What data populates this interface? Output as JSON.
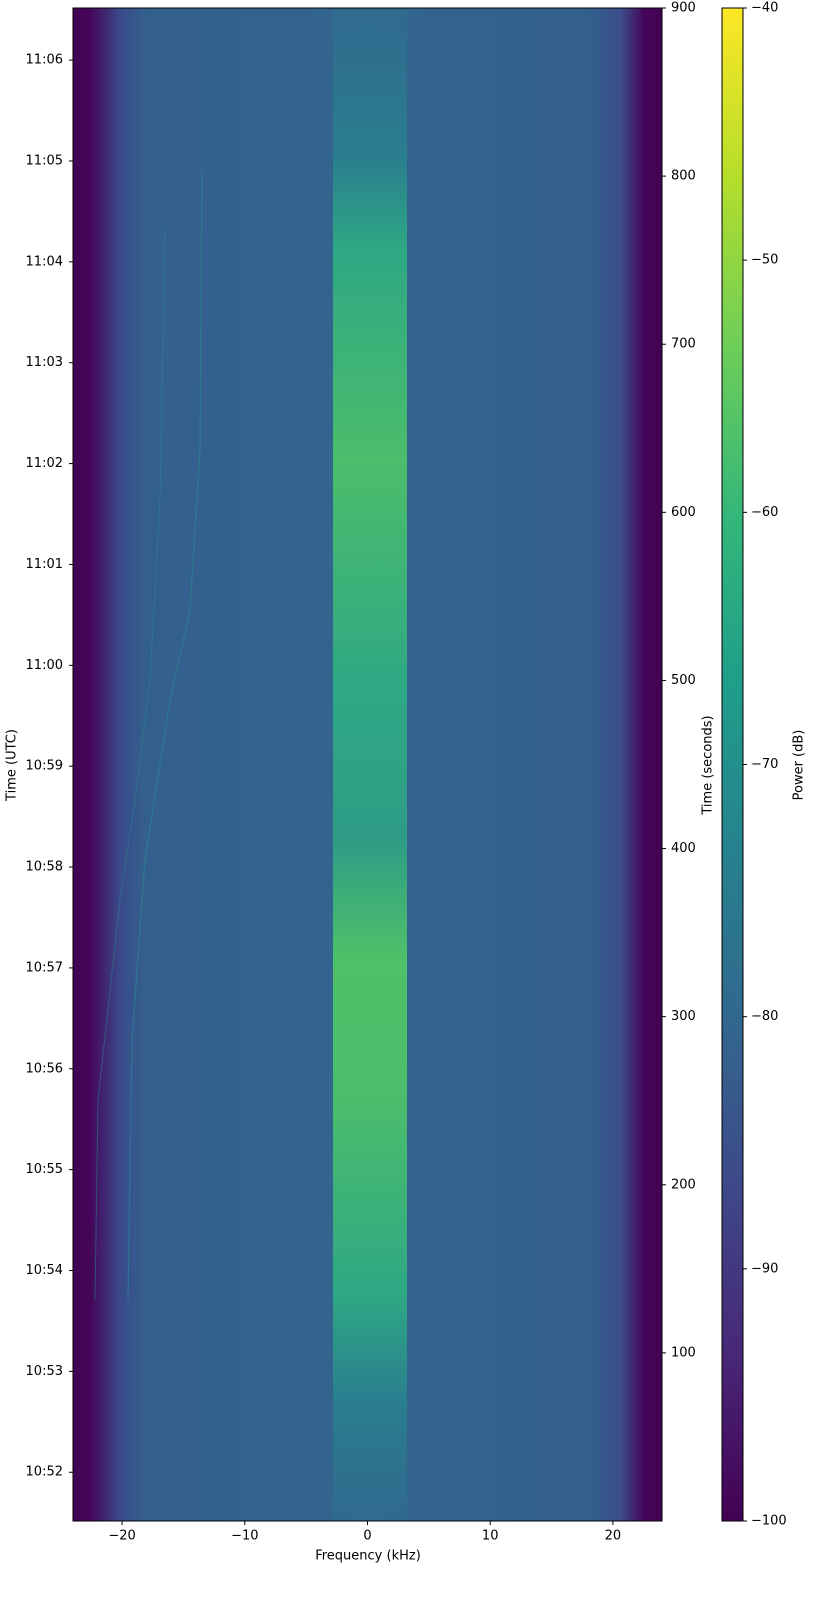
{
  "chart_data": {
    "type": "spectrogram",
    "x_label": "Frequency (kHz)",
    "y_label": "Time (UTC)",
    "y2_label": "Time (seconds)",
    "colorbar_label": "Power (dB)",
    "xlim": [
      -24,
      24
    ],
    "xticks": [
      {
        "value": -20,
        "label": "−20"
      },
      {
        "value": -10,
        "label": "−10"
      },
      0,
      10,
      20
    ],
    "ylim": [
      0,
      900
    ],
    "yticks": [
      {
        "value": 29,
        "label": "10:52"
      },
      {
        "value": 89,
        "label": "10:53"
      },
      {
        "value": 149,
        "label": "10:54"
      },
      {
        "value": 209,
        "label": "10:55"
      },
      {
        "value": 269,
        "label": "10:56"
      },
      {
        "value": 329,
        "label": "10:57"
      },
      {
        "value": 389,
        "label": "10:58"
      },
      {
        "value": 449,
        "label": "10:59"
      },
      {
        "value": 509,
        "label": "11:00"
      },
      {
        "value": 569,
        "label": "11:01"
      },
      {
        "value": 629,
        "label": "11:02"
      },
      {
        "value": 689,
        "label": "11:03"
      },
      {
        "value": 749,
        "label": "11:04"
      },
      {
        "value": 809,
        "label": "11:05"
      },
      {
        "value": 869,
        "label": "11:06"
      }
    ],
    "y2lim": [
      0,
      900
    ],
    "y2ticks": [
      100,
      200,
      300,
      400,
      500,
      600,
      700,
      800,
      900
    ],
    "clim": [
      -100,
      -40
    ],
    "cticks": [
      {
        "value": -100,
        "label": "−100"
      },
      {
        "value": -90,
        "label": "−90"
      },
      {
        "value": -80,
        "label": "−80"
      },
      {
        "value": -70,
        "label": "−70"
      },
      {
        "value": -60,
        "label": "−60"
      },
      {
        "value": -50,
        "label": "−50"
      },
      {
        "value": -40,
        "label": "−40"
      }
    ],
    "colormap": [
      "#440154",
      "#482878",
      "#3e4989",
      "#31688e",
      "#26828e",
      "#1f9e89",
      "#35b779",
      "#6ece58",
      "#b5de2b",
      "#fde725"
    ]
  }
}
